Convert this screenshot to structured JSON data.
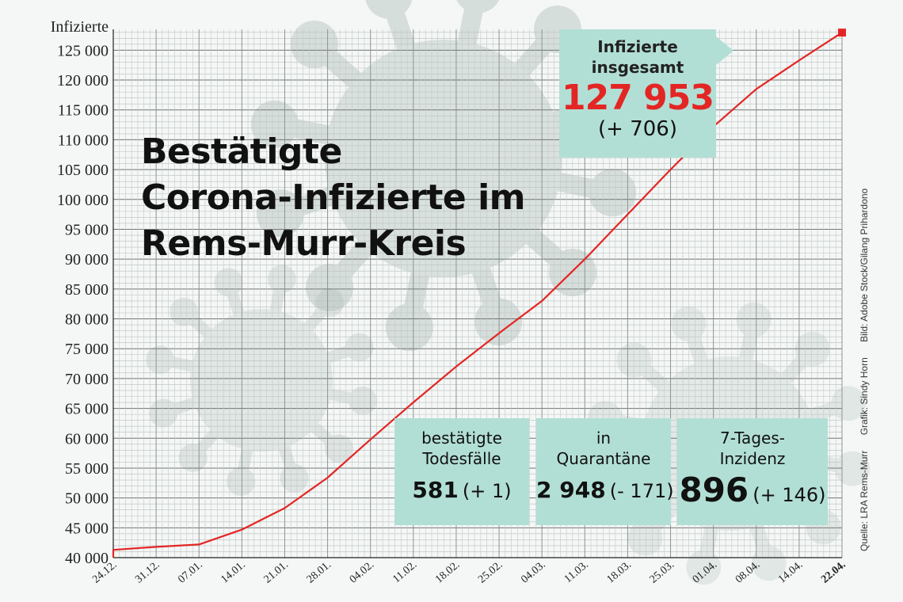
{
  "chart_data": {
    "type": "line",
    "title": "Bestätigte Corona-Infizierte im Rems-Murr-Kreis",
    "title_lines": [
      "Bestätigte",
      "Corona-Infizierte im",
      "Rems-Murr-Kreis"
    ],
    "ylabel": "Infizierte",
    "xlabel": "",
    "ylim": [
      40000,
      127953
    ],
    "yticks": [
      "40 000",
      "45 000",
      "50 000",
      "55 000",
      "60 000",
      "65 000",
      "70 000",
      "75 000",
      "80 000",
      "85 000",
      "90 000",
      "95 000",
      "100 000",
      "105 000",
      "110 000",
      "115 000",
      "120 000",
      "125 000"
    ],
    "x_tick_labels": [
      "24.12.",
      "31.12.",
      "07.01.",
      "14.01.",
      "21.01.",
      "28.01.",
      "04.02.",
      "11.02.",
      "18.02.",
      "25.02.",
      "04.03.",
      "11.03.",
      "18.03.",
      "25.03.",
      "01.04.",
      "08.04.",
      "14.04.",
      "22.04."
    ],
    "grid": true,
    "series": [
      {
        "color": "#e32624",
        "points": [
          {
            "x": "24.12.",
            "y": 41300
          },
          {
            "x": "31.12.",
            "y": 41800
          },
          {
            "x": "07.01.",
            "y": 42200
          },
          {
            "x": "14.01.",
            "y": 44700
          },
          {
            "x": "21.01.",
            "y": 48300
          },
          {
            "x": "28.01.",
            "y": 53400
          },
          {
            "x": "04.02.",
            "y": 59800
          },
          {
            "x": "11.02.",
            "y": 66000
          },
          {
            "x": "18.02.",
            "y": 72000
          },
          {
            "x": "25.02.",
            "y": 77600
          },
          {
            "x": "04.03.",
            "y": 83000
          },
          {
            "x": "11.03.",
            "y": 90000
          },
          {
            "x": "18.03.",
            "y": 97500
          },
          {
            "x": "25.03.",
            "y": 105000
          },
          {
            "x": "01.04.",
            "y": 112200
          },
          {
            "x": "08.04.",
            "y": 118500
          },
          {
            "x": "14.04.",
            "y": 123300
          },
          {
            "x": "22.04.",
            "y": 127953
          }
        ]
      }
    ],
    "colors": {
      "line": "#e32624",
      "box": "#b2dfd5",
      "highlight_number": "#e32624"
    }
  },
  "total": {
    "label_1": "Infizierte",
    "label_2": "insgesamt",
    "value": "127 953",
    "change": "(+ 706)"
  },
  "stats": {
    "deaths": {
      "label_1": "bestätigte",
      "label_2": "Todesfälle",
      "value": "581",
      "change": "(+ 1)"
    },
    "quarantine": {
      "label_1": "in",
      "label_2": "Quarantäne",
      "value": "2 948",
      "change": "(- 171)"
    },
    "incidence": {
      "label_1": "7-Tages-",
      "label_2": "Inzidenz",
      "value": "896",
      "change": "(+ 146)"
    }
  },
  "credits": {
    "source": "Quelle: LRA Rems-Murr",
    "graphic": "Grafik: Sindy Horn",
    "image": "Bild: Adobe Stock/Gilang Prihardono"
  }
}
